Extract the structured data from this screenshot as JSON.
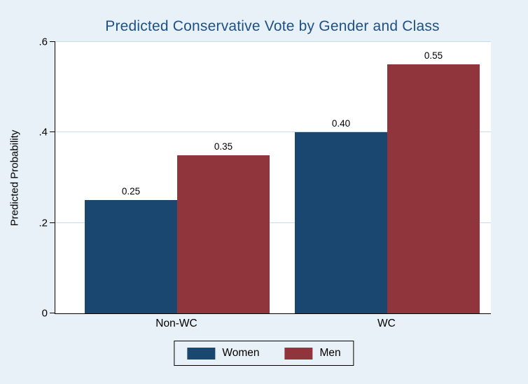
{
  "chart_data": {
    "type": "bar",
    "title": "Predicted Conservative Vote by Gender and Class",
    "ylabel": "Predicted Probability",
    "xlabel": "",
    "categories": [
      "Non-WC",
      "WC"
    ],
    "series": [
      {
        "name": "Women",
        "color": "#1a476f",
        "values": [
          0.25,
          0.4
        ],
        "labels": [
          "0.25",
          "0.40"
        ]
      },
      {
        "name": "Men",
        "color": "#90353b",
        "values": [
          0.35,
          0.55
        ],
        "labels": [
          "0.35",
          "0.55"
        ]
      }
    ],
    "ylim": [
      0,
      0.6
    ],
    "yticks": [
      {
        "v": 0,
        "label": "0"
      },
      {
        "v": 0.2,
        "label": ".2"
      },
      {
        "v": 0.4,
        "label": ".4"
      },
      {
        "v": 0.6,
        "label": ".6"
      }
    ],
    "grid": true,
    "legend_position": "bottom"
  },
  "colors": {
    "background": "#e8f1f7",
    "plot_background": "#ffffff",
    "gridline": "#c7dcea",
    "axis": "#000000",
    "title": "#1d5186"
  }
}
